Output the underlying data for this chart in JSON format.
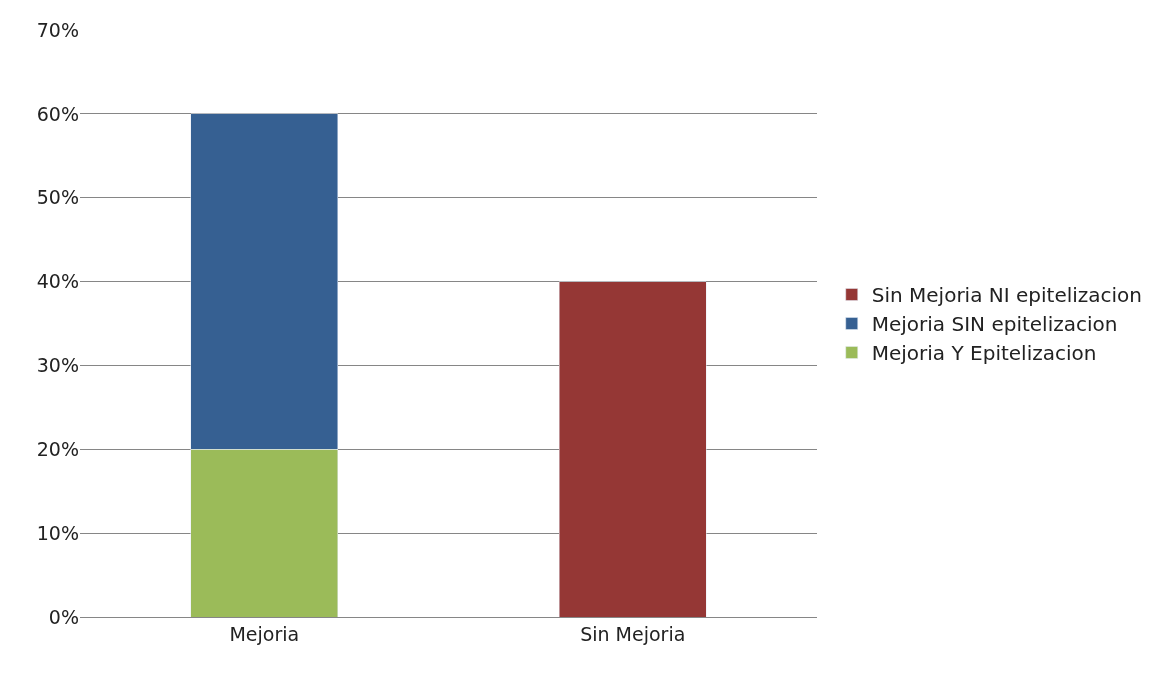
{
  "chart_data": {
    "type": "bar",
    "stacked": true,
    "categories": [
      "Mejoria",
      "Sin Mejoria"
    ],
    "series": [
      {
        "name": "Mejoria Y Epitelizacion",
        "color": "#9bbb59",
        "values": [
          20,
          null
        ]
      },
      {
        "name": "Mejoria SIN epitelizacion",
        "color": "#366092",
        "values": [
          40,
          null
        ]
      },
      {
        "name": "Sin Mejoria NI epitelizacion",
        "color": "#953735",
        "values": [
          null,
          40
        ]
      }
    ],
    "ylim": [
      0,
      70
    ],
    "yticks": [
      {
        "value": 0,
        "label": "0%"
      },
      {
        "value": 10,
        "label": "10%"
      },
      {
        "value": 20,
        "label": "20%"
      },
      {
        "value": 30,
        "label": "30%"
      },
      {
        "value": 40,
        "label": "40%"
      },
      {
        "value": 50,
        "label": "50%"
      },
      {
        "value": 60,
        "label": "60%"
      },
      {
        "value": 70,
        "label": "70%"
      }
    ],
    "grid": "y",
    "legend": "right"
  }
}
